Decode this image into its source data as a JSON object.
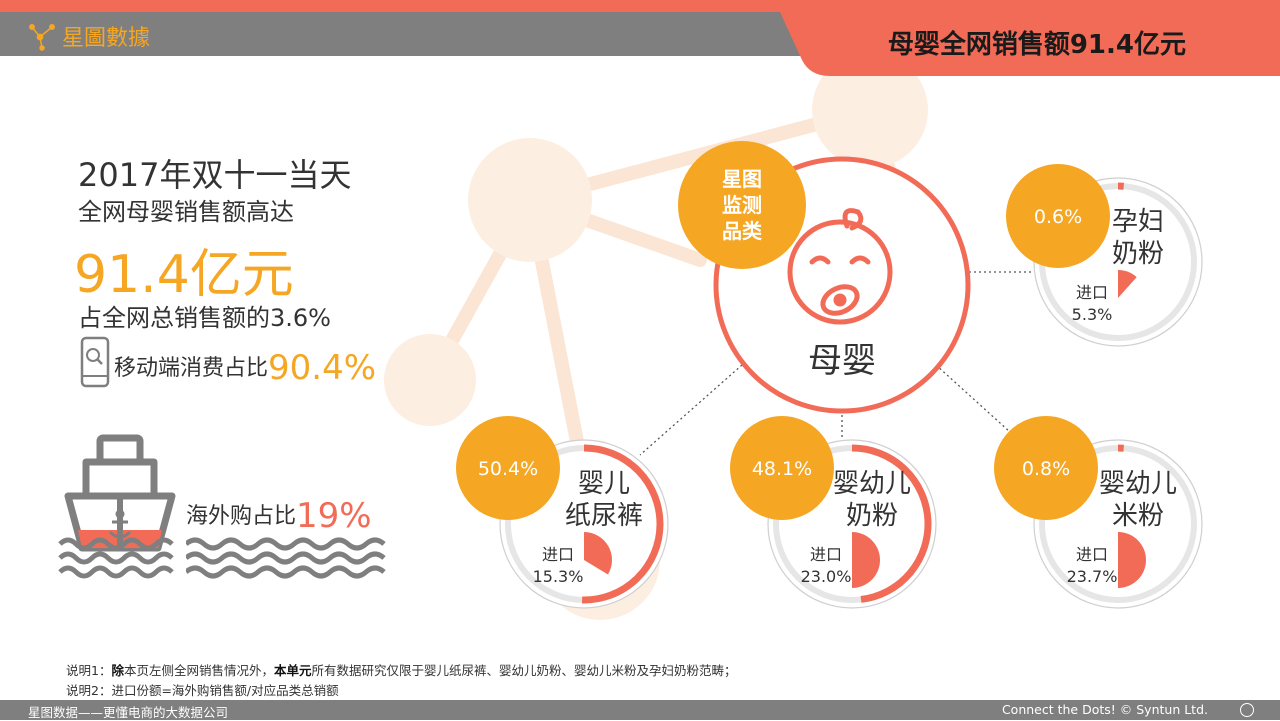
{
  "header": {
    "brand": "星圖數據",
    "title": "母婴全网销售额91.4亿元"
  },
  "summary": {
    "line1": "2017年双十一当天",
    "line2": "全网母婴销售额高达",
    "amount": "91.4亿元",
    "share": "占全网总销售额的3.6%",
    "mobile_label": "移动端消费占比",
    "mobile_value": "90.4%",
    "overseas_label": "海外购占比",
    "overseas_value": "19%"
  },
  "center": {
    "badge_lines": [
      "星图",
      "监测",
      "品类"
    ],
    "name": "母婴"
  },
  "chart_data": {
    "type": "pie",
    "total": "91.4亿元",
    "categories": [
      {
        "name_lines": [
          "孕妇",
          "奶粉"
        ],
        "share_label": "0.6%",
        "share": 0.6,
        "import_label": "进口",
        "import_value_label": "5.3%",
        "import_share": 5.3
      },
      {
        "name_lines": [
          "婴儿",
          "纸尿裤"
        ],
        "share_label": "50.4%",
        "share": 50.4,
        "import_label": "进口",
        "import_value_label": "15.3%",
        "import_share": 15.3
      },
      {
        "name_lines": [
          "婴幼儿",
          "奶粉"
        ],
        "share_label": "48.1%",
        "share": 48.1,
        "import_label": "进口",
        "import_value_label": "23.0%",
        "import_share": 23.0
      },
      {
        "name_lines": [
          "婴幼儿",
          "米粉"
        ],
        "share_label": "0.8%",
        "share": 0.8,
        "import_label": "进口",
        "import_value_label": "23.7%",
        "import_share": 23.7
      }
    ]
  },
  "notes": {
    "note1_prefix": "说明1：",
    "note1_b1": "除",
    "note1_t1": "本页左侧全网销售情况外，",
    "note1_b2": "本单元",
    "note1_t2": "所有数据研究仅限于婴儿纸尿裤、婴幼儿奶粉、婴幼儿米粉及孕妇奶粉范畴；",
    "note2": "说明2：进口份额=海外购销售额/对应品类总销额"
  },
  "footer": {
    "left": "星图数据——更懂电商的大数据公司",
    "right": "Connect the Dots! © Syntun Ltd."
  },
  "colors": {
    "orange": "#f5a623",
    "coral": "#f26b57",
    "gray": "#7f7f7f"
  }
}
